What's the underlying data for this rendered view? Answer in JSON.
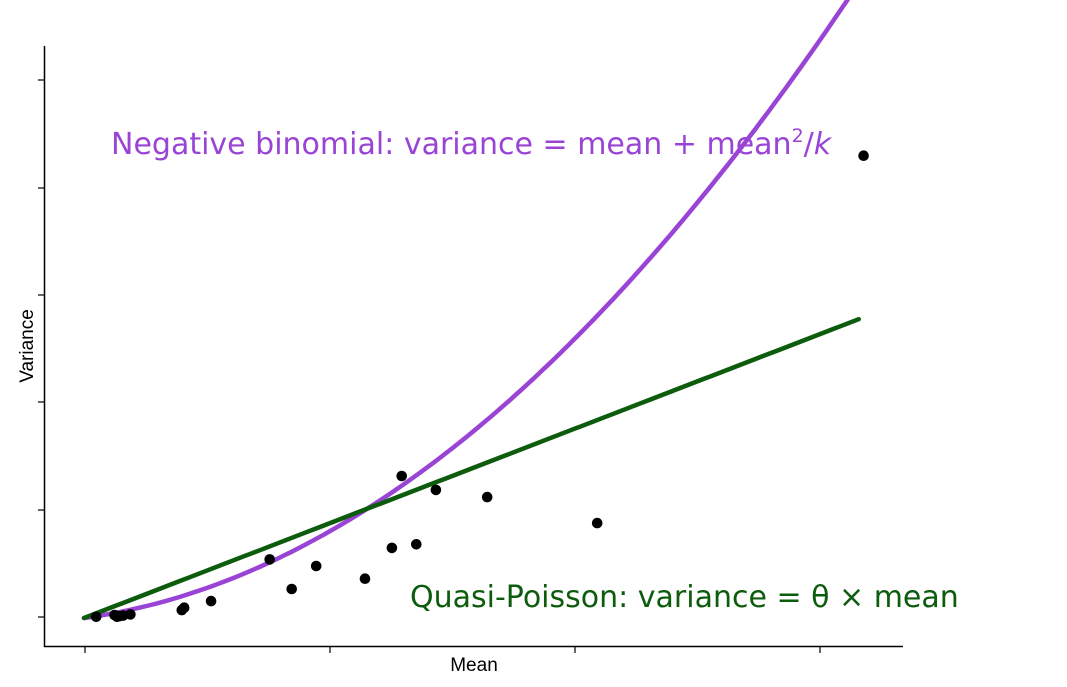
{
  "chart_data": {
    "type": "scatter",
    "xlabel": "Mean",
    "ylabel": "Variance",
    "xlim": [
      0,
      32
    ],
    "ylim": [
      0,
      9.4
    ],
    "grid": false,
    "tick_labels_shown": false,
    "points": [
      {
        "x": 0.5,
        "y": 0.02
      },
      {
        "x": 1.25,
        "y": 0.05
      },
      {
        "x": 1.35,
        "y": 0.02
      },
      {
        "x": 1.45,
        "y": 0.03
      },
      {
        "x": 1.6,
        "y": 0.04
      },
      {
        "x": 1.9,
        "y": 0.06
      },
      {
        "x": 4.0,
        "y": 0.13
      },
      {
        "x": 4.1,
        "y": 0.17
      },
      {
        "x": 5.2,
        "y": 0.28
      },
      {
        "x": 7.6,
        "y": 0.97
      },
      {
        "x": 8.5,
        "y": 0.48
      },
      {
        "x": 9.5,
        "y": 0.86
      },
      {
        "x": 11.5,
        "y": 0.65
      },
      {
        "x": 12.6,
        "y": 1.16
      },
      {
        "x": 13.0,
        "y": 2.35
      },
      {
        "x": 13.6,
        "y": 1.22
      },
      {
        "x": 14.4,
        "y": 2.12
      },
      {
        "x": 16.5,
        "y": 2.0
      },
      {
        "x": 21.0,
        "y": 1.57
      },
      {
        "x": 31.9,
        "y": 7.65
      }
    ],
    "series": [
      {
        "name": "Negative binomial",
        "color": "#9a44d6",
        "x_range": [
          0,
          31.7
        ],
        "mean_coef": 0.055,
        "quadratic_coef": 0.00872
      },
      {
        "name": "Quasi-Poisson",
        "color": "#0d5c0d",
        "x_range": [
          0,
          31.7
        ],
        "mean_coef": 0.156
      }
    ],
    "annotations": [
      {
        "id": "nb",
        "base": "Negative binomial: variance = mean + mean",
        "sup": "2",
        "slash": "/",
        "ital": "k",
        "color": "#9a44d6"
      },
      {
        "id": "qp",
        "text": "Quasi-Poisson: variance = θ × mean",
        "color": "#0d5c0d"
      }
    ]
  }
}
